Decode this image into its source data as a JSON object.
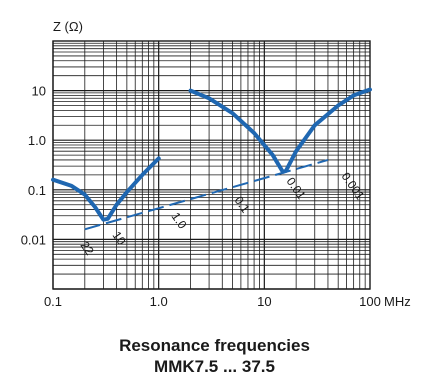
{
  "chart_data": {
    "type": "line",
    "ylabel": "Z (Ω)",
    "xunit": "MHz",
    "xscale": "log",
    "yscale": "log",
    "xlim": [
      0.1,
      100
    ],
    "ylim": [
      0.001,
      100
    ],
    "grid": true,
    "x_ticks": [
      {
        "value": 0.1,
        "label": "0.1"
      },
      {
        "value": 1,
        "label": "1.0"
      },
      {
        "value": 10,
        "label": "10"
      },
      {
        "value": 100,
        "label": "100"
      }
    ],
    "y_ticks": [
      {
        "value": 10,
        "label": "10"
      },
      {
        "value": 1,
        "label": "1.0"
      },
      {
        "value": 0.1,
        "label": "0.1"
      },
      {
        "value": 0.01,
        "label": "0.01"
      }
    ],
    "series": [
      {
        "color": "#1f67b1",
        "points": [
          [
            0.1,
            0.16
          ],
          [
            0.15,
            0.12
          ],
          [
            0.2,
            0.08
          ],
          [
            0.25,
            0.045
          ],
          [
            0.3,
            0.025
          ],
          [
            0.33,
            0.026
          ],
          [
            0.4,
            0.05
          ],
          [
            0.5,
            0.09
          ],
          [
            0.7,
            0.2
          ],
          [
            1.0,
            0.43
          ]
        ]
      },
      {
        "color": "#1f67b1",
        "points": [
          [
            2,
            10
          ],
          [
            3,
            7
          ],
          [
            5,
            3.5
          ],
          [
            8,
            1.4
          ],
          [
            12,
            0.5
          ],
          [
            15,
            0.23
          ],
          [
            16,
            0.24
          ],
          [
            20,
            0.6
          ],
          [
            30,
            2
          ],
          [
            50,
            5
          ],
          [
            70,
            8
          ],
          [
            100,
            10.5
          ]
        ]
      }
    ],
    "resonance_line": {
      "color": "#1f67b1",
      "points": [
        [
          0.2,
          0.016
        ],
        [
          40,
          0.4
        ]
      ]
    },
    "capacitance_labels": [
      "22",
      "10",
      "1.0",
      "0.1",
      "0.01",
      "0.001"
    ]
  },
  "caption": {
    "line1": "Resonance frequencies",
    "line2": "MMK7.5 ... 37.5"
  }
}
